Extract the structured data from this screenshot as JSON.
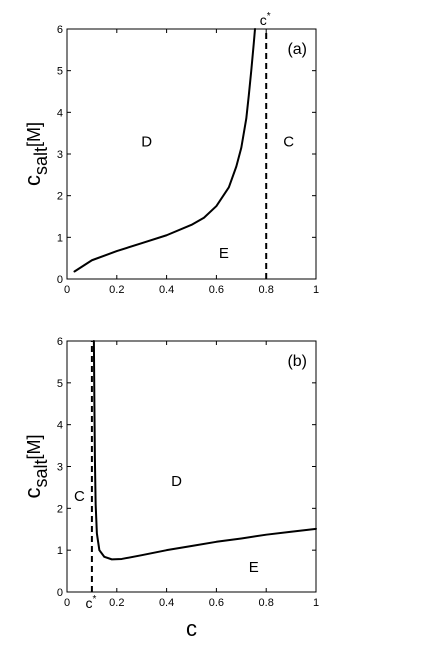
{
  "chart_data": [
    {
      "type": "line",
      "panel_label": "(a)",
      "xlabel": "",
      "ylabel": "c",
      "ylabel_sub": "salt",
      "ylabel_suffix": "[M]",
      "xlim": [
        0,
        1
      ],
      "ylim": [
        0,
        6
      ],
      "xticks": [
        0,
        0.2,
        0.4,
        0.6,
        0.8,
        1
      ],
      "xtick_labels": [
        "0",
        "0.2",
        "0.4",
        "0.6",
        "0.8",
        "1"
      ],
      "yticks": [
        0,
        1,
        2,
        3,
        4,
        5,
        6
      ],
      "ytick_labels": [
        "0",
        "1",
        "2",
        "3",
        "4",
        "5",
        "6"
      ],
      "grid": false,
      "series": [
        {
          "style": "solid",
          "x": [
            0.03,
            0.1,
            0.2,
            0.3,
            0.4,
            0.5,
            0.55,
            0.6,
            0.65,
            0.68,
            0.7,
            0.72,
            0.73,
            0.74,
            0.75,
            0.755
          ],
          "y": [
            0.18,
            0.45,
            0.67,
            0.86,
            1.05,
            1.3,
            1.47,
            1.75,
            2.2,
            2.7,
            3.15,
            3.85,
            4.4,
            5.0,
            5.65,
            6.0
          ]
        },
        {
          "style": "dashed",
          "x": [
            0.8,
            0.8
          ],
          "y": [
            0,
            6
          ]
        }
      ],
      "annotations": [
        {
          "text": "D",
          "x": 0.32,
          "y": 3.3
        },
        {
          "text": "C",
          "x": 0.89,
          "y": 3.3
        },
        {
          "text": "E",
          "x": 0.63,
          "y": 0.62
        }
      ],
      "cstar": {
        "symbol": "c",
        "superscript": "*",
        "x": 0.8,
        "position": "top"
      }
    },
    {
      "type": "line",
      "panel_label": "(b)",
      "xlabel": "c",
      "ylabel": "c",
      "ylabel_sub": "salt",
      "ylabel_suffix": "[M]",
      "xlim": [
        0,
        1
      ],
      "ylim": [
        0,
        6
      ],
      "xticks": [
        0,
        0.2,
        0.4,
        0.6,
        0.8,
        1
      ],
      "xtick_labels": [
        "0",
        "0.2",
        "0.4",
        "0.6",
        "0.8",
        "1"
      ],
      "yticks": [
        0,
        1,
        2,
        3,
        4,
        5,
        6
      ],
      "ytick_labels": [
        "0",
        "1",
        "2",
        "3",
        "4",
        "5",
        "6"
      ],
      "grid": false,
      "series": [
        {
          "style": "solid",
          "x": [
            0.108,
            0.11,
            0.112,
            0.115,
            0.12,
            0.13,
            0.15,
            0.18,
            0.22,
            0.3,
            0.4,
            0.5,
            0.6,
            0.7,
            0.8,
            0.9,
            1.0
          ],
          "y": [
            6.0,
            4.5,
            3.2,
            2.1,
            1.4,
            1.0,
            0.84,
            0.78,
            0.79,
            0.88,
            1.0,
            1.1,
            1.2,
            1.28,
            1.37,
            1.44,
            1.51
          ]
        },
        {
          "style": "dashed",
          "x": [
            0.1,
            0.1
          ],
          "y": [
            0,
            6
          ]
        }
      ],
      "annotations": [
        {
          "text": "D",
          "x": 0.44,
          "y": 2.65
        },
        {
          "text": "C",
          "x": 0.05,
          "y": 2.3
        },
        {
          "text": "E",
          "x": 0.75,
          "y": 0.6
        }
      ],
      "cstar": {
        "symbol": "c",
        "superscript": "*",
        "x": 0.1,
        "position": "bottom"
      }
    }
  ]
}
